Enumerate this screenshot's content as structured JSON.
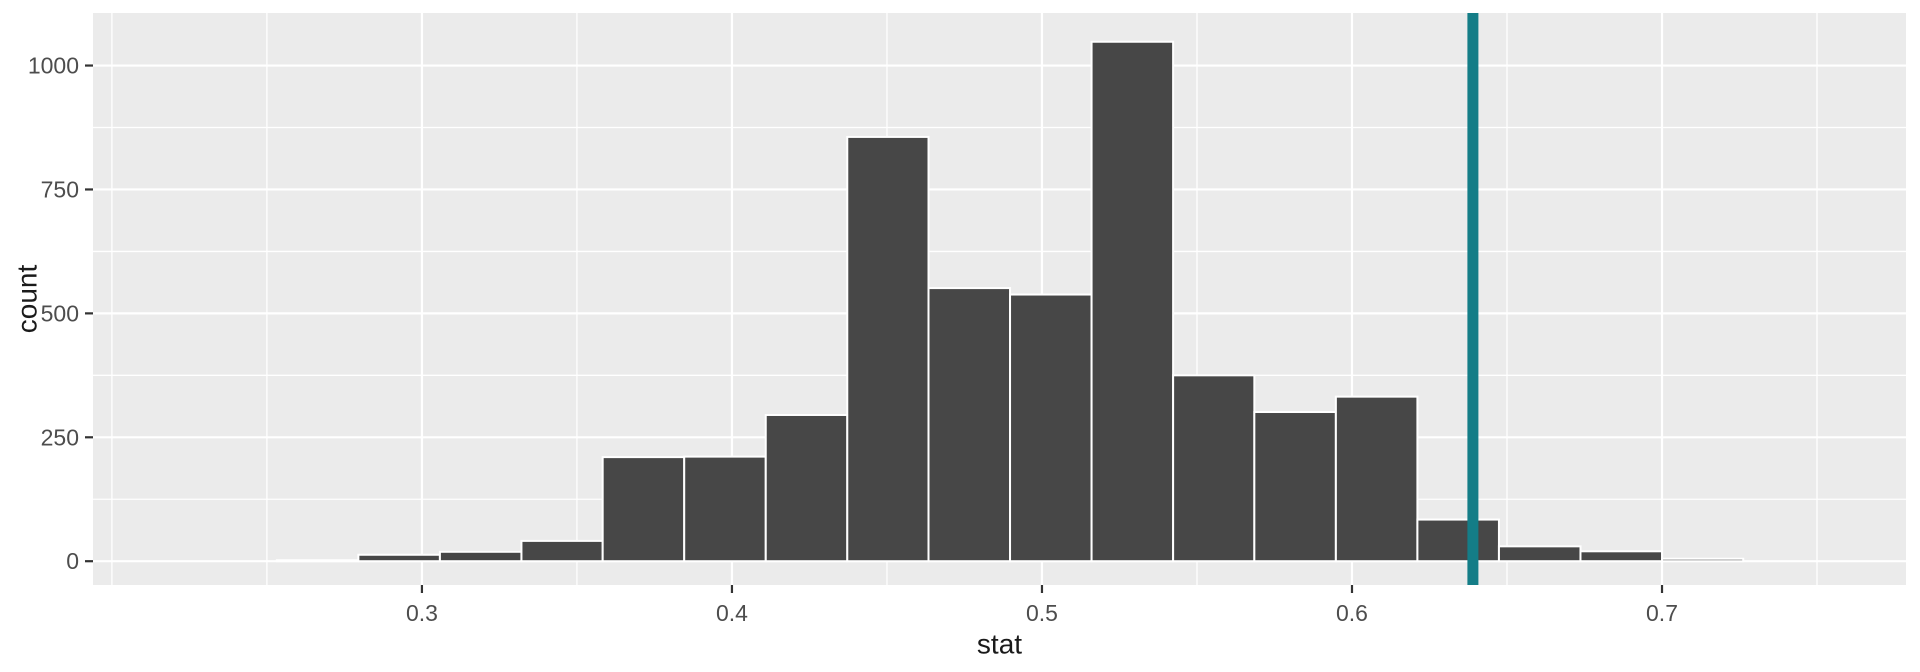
{
  "chart_data": {
    "type": "bar",
    "subtype": "histogram",
    "title": "",
    "xlabel": "stat",
    "ylabel": "count",
    "bin_edges": [
      0.2532,
      0.2795,
      0.3058,
      0.3321,
      0.3583,
      0.3846,
      0.4109,
      0.4372,
      0.4634,
      0.4897,
      0.516,
      0.5423,
      0.5685,
      0.5948,
      0.6211,
      0.6474,
      0.6737,
      0.7,
      0.7262
    ],
    "counts": [
      2,
      13,
      19,
      41,
      210,
      211,
      295,
      856,
      551,
      538,
      1048,
      375,
      301,
      332,
      84,
      30,
      20,
      5
    ],
    "x_tick_values": [
      0.3,
      0.4,
      0.5,
      0.6,
      0.7
    ],
    "x_tick_labels": [
      "0.3",
      "0.4",
      "0.5",
      "0.6",
      "0.7"
    ],
    "y_tick_values": [
      0,
      250,
      500,
      750,
      1000
    ],
    "y_tick_labels": [
      "0",
      "250",
      "500",
      "750",
      "1000"
    ],
    "x_minor_values": [
      0.2,
      0.25,
      0.35,
      0.45,
      0.55,
      0.65,
      0.75
    ],
    "y_minor_values": [
      125,
      375,
      625,
      875
    ],
    "xlim": [
      0.1939,
      0.7787
    ],
    "ylim": [
      -48,
      1106
    ],
    "grid": "on",
    "legend": "none",
    "vline": {
      "x": 0.639
    },
    "colors": {
      "panel_bg": "#EBEBEB",
      "grid": "#FFFFFF",
      "bar_fill": "#474747",
      "bar_stroke": "#FFFFFF",
      "vline": "#147D87",
      "axis_text": "#4D4D4D",
      "axis_title": "#1A1A1A",
      "tick_mark": "#333333"
    }
  }
}
